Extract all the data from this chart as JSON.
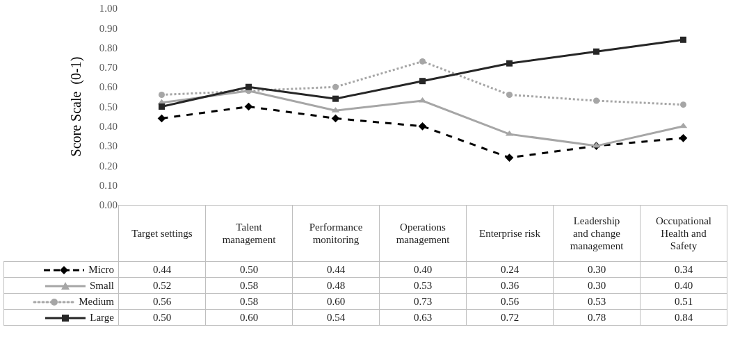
{
  "chart_data": {
    "type": "line",
    "ylabel": "Score Scale  (0-1)",
    "categories": [
      "Target settings",
      "Talent management",
      "Performance monitoring",
      "Operations management",
      "Enterprise risk",
      "Leadership and change management",
      "Occupational Health and Safety"
    ],
    "series": [
      {
        "name": "Micro",
        "color": "#000000",
        "marker": "diamond",
        "line_style": "dashed",
        "values": [
          0.44,
          0.5,
          0.44,
          0.4,
          0.24,
          0.3,
          0.34
        ],
        "value_labels": [
          "0.44",
          "0.50",
          "0.44",
          "0.40",
          "0.24",
          "0.30",
          "0.34"
        ]
      },
      {
        "name": "Small",
        "color": "#a6a6a6",
        "marker": "triangle",
        "line_style": "solid",
        "values": [
          0.52,
          0.58,
          0.48,
          0.53,
          0.36,
          0.3,
          0.4
        ],
        "value_labels": [
          "0.52",
          "0.58",
          "0.48",
          "0.53",
          "0.36",
          "0.30",
          "0.40"
        ]
      },
      {
        "name": "Medium",
        "color": "#a6a6a6",
        "marker": "circle",
        "line_style": "dotted",
        "values": [
          0.56,
          0.58,
          0.6,
          0.73,
          0.56,
          0.53,
          0.51
        ],
        "value_labels": [
          "0.56",
          "0.58",
          "0.60",
          "0.73",
          "0.56",
          "0.53",
          "0.51"
        ]
      },
      {
        "name": "Large",
        "color": "#262626",
        "marker": "square",
        "line_style": "solid",
        "values": [
          0.5,
          0.6,
          0.54,
          0.63,
          0.72,
          0.78,
          0.84
        ],
        "value_labels": [
          "0.50",
          "0.60",
          "0.54",
          "0.63",
          "0.72",
          "0.78",
          "0.84"
        ]
      }
    ],
    "ylim": [
      0,
      1
    ],
    "yticks": [
      {
        "value": 0,
        "label": "0.00"
      },
      {
        "value": 0.1,
        "label": "0.10"
      },
      {
        "value": 0.2,
        "label": "0.20"
      },
      {
        "value": 0.3,
        "label": "0.30"
      },
      {
        "value": 0.4,
        "label": "0.40"
      },
      {
        "value": 0.5,
        "label": "0.50"
      },
      {
        "value": 0.6,
        "label": "0.60"
      },
      {
        "value": 0.7,
        "label": "0.70"
      },
      {
        "value": 0.8,
        "label": "0.80"
      },
      {
        "value": 0.9,
        "label": "0.90"
      },
      {
        "value": 1,
        "label": "1.00"
      }
    ],
    "grid": false,
    "legend": "bottom"
  }
}
